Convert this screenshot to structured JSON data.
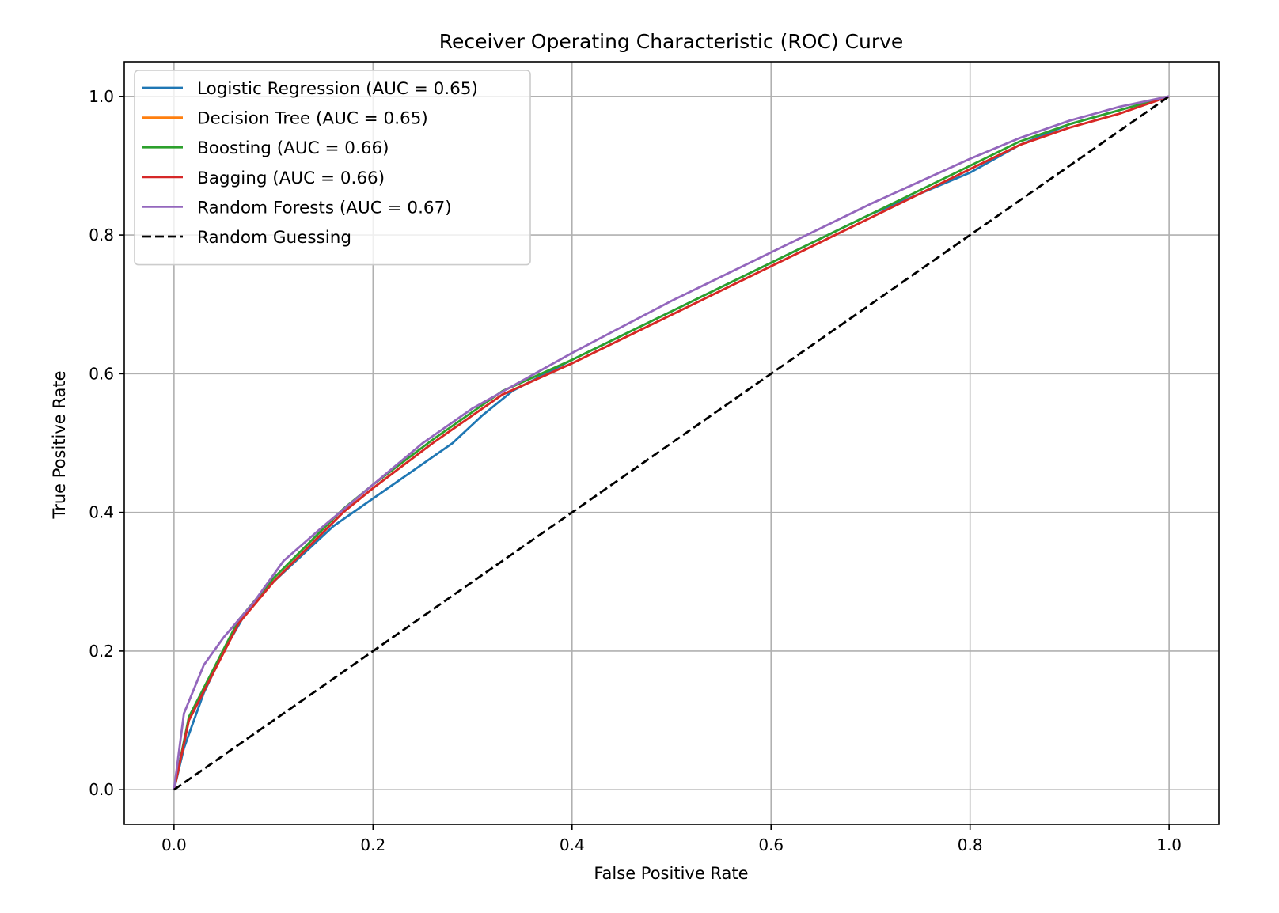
{
  "chart_data": {
    "type": "line",
    "title": "Receiver Operating Characteristic (ROC) Curve",
    "xlabel": "False Positive Rate",
    "ylabel": "True Positive Rate",
    "xlim": [
      -0.05,
      1.05
    ],
    "ylim": [
      -0.05,
      1.05
    ],
    "xticks": [
      0.0,
      0.2,
      0.4,
      0.6,
      0.8,
      1.0
    ],
    "yticks": [
      0.0,
      0.2,
      0.4,
      0.6,
      0.8,
      1.0
    ],
    "xtick_labels": [
      "0.0",
      "0.2",
      "0.4",
      "0.6",
      "0.8",
      "1.0"
    ],
    "ytick_labels": [
      "0.0",
      "0.2",
      "0.4",
      "0.6",
      "0.8",
      "1.0"
    ],
    "grid": true,
    "legend_position": "upper-left",
    "series": [
      {
        "name": "Logistic Regression (AUC = 0.65)",
        "color": "#1f77b4",
        "dash": "solid",
        "x": [
          0.0,
          0.01,
          0.03,
          0.05,
          0.07,
          0.1,
          0.13,
          0.16,
          0.2,
          0.24,
          0.28,
          0.31,
          0.34,
          0.36,
          0.4,
          0.5,
          0.6,
          0.7,
          0.8,
          0.85,
          0.9,
          0.95,
          1.0
        ],
        "y": [
          0.0,
          0.06,
          0.14,
          0.2,
          0.25,
          0.3,
          0.34,
          0.38,
          0.42,
          0.46,
          0.5,
          0.54,
          0.575,
          0.59,
          0.62,
          0.69,
          0.76,
          0.83,
          0.89,
          0.93,
          0.96,
          0.98,
          1.0
        ]
      },
      {
        "name": "Decision Tree (AUC = 0.65)",
        "color": "#ff7f0e",
        "dash": "solid",
        "x": [
          0.0,
          0.015,
          0.065,
          0.1,
          0.17,
          0.2,
          0.26,
          0.33,
          0.4,
          0.5,
          0.6,
          0.7,
          0.8,
          0.85,
          0.9,
          0.95,
          1.0
        ],
        "y": [
          0.0,
          0.1,
          0.24,
          0.3,
          0.4,
          0.435,
          0.5,
          0.57,
          0.615,
          0.685,
          0.755,
          0.825,
          0.895,
          0.93,
          0.955,
          0.975,
          1.0
        ]
      },
      {
        "name": "Boosting (AUC = 0.66)",
        "color": "#2ca02c",
        "dash": "solid",
        "x": [
          0.0,
          0.015,
          0.065,
          0.1,
          0.17,
          0.2,
          0.26,
          0.33,
          0.4,
          0.5,
          0.6,
          0.7,
          0.8,
          0.85,
          0.9,
          0.95,
          1.0
        ],
        "y": [
          0.0,
          0.105,
          0.245,
          0.305,
          0.405,
          0.44,
          0.505,
          0.575,
          0.62,
          0.69,
          0.76,
          0.83,
          0.9,
          0.935,
          0.96,
          0.98,
          1.0
        ]
      },
      {
        "name": "Bagging (AUC = 0.66)",
        "color": "#d62728",
        "dash": "solid",
        "x": [
          0.0,
          0.015,
          0.065,
          0.1,
          0.17,
          0.2,
          0.26,
          0.33,
          0.4,
          0.5,
          0.6,
          0.7,
          0.8,
          0.85,
          0.9,
          0.95,
          1.0
        ],
        "y": [
          0.0,
          0.1,
          0.24,
          0.3,
          0.4,
          0.435,
          0.5,
          0.57,
          0.615,
          0.685,
          0.755,
          0.825,
          0.895,
          0.93,
          0.955,
          0.975,
          1.0
        ]
      },
      {
        "name": "Random Forests (AUC = 0.67)",
        "color": "#9467bd",
        "dash": "solid",
        "x": [
          0.0,
          0.01,
          0.03,
          0.05,
          0.08,
          0.11,
          0.15,
          0.2,
          0.25,
          0.3,
          0.35,
          0.4,
          0.5,
          0.6,
          0.7,
          0.8,
          0.85,
          0.9,
          0.95,
          1.0
        ],
        "y": [
          0.0,
          0.11,
          0.18,
          0.22,
          0.27,
          0.33,
          0.38,
          0.44,
          0.5,
          0.55,
          0.59,
          0.63,
          0.705,
          0.775,
          0.845,
          0.91,
          0.94,
          0.965,
          0.985,
          1.0
        ]
      },
      {
        "name": "Random Guessing",
        "color": "#000000",
        "dash": "dashed",
        "x": [
          0.0,
          1.0
        ],
        "y": [
          0.0,
          1.0
        ]
      }
    ]
  }
}
